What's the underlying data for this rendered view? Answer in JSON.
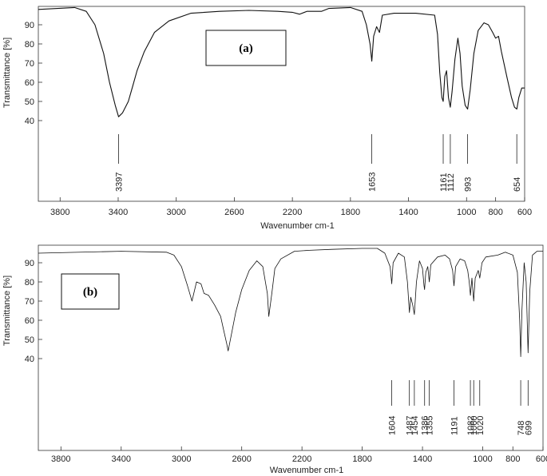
{
  "chart_data": [
    {
      "type": "line",
      "tag": "(a)",
      "xlabel": "Wavenumber cm-1",
      "ylabel": "Transmittance [%]",
      "xlim": [
        3950,
        600
      ],
      "ylim": [
        0,
        100
      ],
      "x_reversed": true,
      "x_ticks": [
        3800,
        3400,
        3000,
        2600,
        2200,
        1800,
        1400,
        1000,
        800,
        600
      ],
      "y_ticks": [
        40,
        50,
        60,
        70,
        80,
        90
      ],
      "grid": false,
      "peak_labels": [
        "3397",
        "1653",
        "1161",
        "1112",
        "993",
        "654"
      ],
      "peak_positions": [
        3397,
        1653,
        1161,
        1112,
        993,
        654
      ],
      "series": [
        {
          "values": [
            [
              3950,
              98
            ],
            [
              3700,
              99
            ],
            [
              3620,
              97
            ],
            [
              3560,
              90
            ],
            [
              3500,
              75
            ],
            [
              3460,
              60
            ],
            [
              3420,
              48
            ],
            [
              3397,
              42
            ],
            [
              3370,
              44
            ],
            [
              3330,
              50
            ],
            [
              3300,
              58
            ],
            [
              3270,
              66
            ],
            [
              3220,
              76
            ],
            [
              3150,
              86
            ],
            [
              3050,
              92
            ],
            [
              2900,
              96
            ],
            [
              2700,
              97
            ],
            [
              2500,
              97.5
            ],
            [
              2300,
              97
            ],
            [
              2200,
              96.5
            ],
            [
              2150,
              95.5
            ],
            [
              2100,
              97
            ],
            [
              2000,
              97
            ],
            [
              1950,
              98.5
            ],
            [
              1800,
              99
            ],
            [
              1720,
              97
            ],
            [
              1690,
              90
            ],
            [
              1665,
              80
            ],
            [
              1653,
              71
            ],
            [
              1640,
              84
            ],
            [
              1620,
              89
            ],
            [
              1600,
              86
            ],
            [
              1580,
              95
            ],
            [
              1500,
              96
            ],
            [
              1350,
              96
            ],
            [
              1220,
              95
            ],
            [
              1200,
              85
            ],
            [
              1185,
              65
            ],
            [
              1170,
              52
            ],
            [
              1161,
              50
            ],
            [
              1150,
              63
            ],
            [
              1138,
              66
            ],
            [
              1125,
              52
            ],
            [
              1112,
              47
            ],
            [
              1100,
              55
            ],
            [
              1080,
              72
            ],
            [
              1060,
              83
            ],
            [
              1045,
              75
            ],
            [
              1030,
              58
            ],
            [
              1010,
              48
            ],
            [
              993,
              46
            ],
            [
              975,
              56
            ],
            [
              950,
              75
            ],
            [
              920,
              87
            ],
            [
              880,
              91
            ],
            [
              850,
              90
            ],
            [
              820,
              86
            ],
            [
              800,
              83
            ],
            [
              780,
              84
            ],
            [
              760,
              76
            ],
            [
              720,
              62
            ],
            [
              690,
              52
            ],
            [
              670,
              47
            ],
            [
              654,
              46
            ],
            [
              640,
              52
            ],
            [
              620,
              57
            ],
            [
              600,
              57
            ]
          ]
        }
      ]
    },
    {
      "type": "line",
      "tag": "(b)",
      "xlabel": "Wavenumber cm-1",
      "ylabel": "Transmittance [%]",
      "xlim": [
        3950,
        600
      ],
      "ylim": [
        0,
        100
      ],
      "x_reversed": true,
      "x_ticks": [
        3800,
        3400,
        3000,
        2600,
        2200,
        1800,
        1400,
        1000,
        800,
        600
      ],
      "y_ticks": [
        40,
        50,
        60,
        70,
        80,
        90
      ],
      "grid": false,
      "peak_labels": [
        "1604",
        "1487",
        "1454",
        "1386",
        "1355",
        "1191",
        "1082",
        "1060",
        "1020",
        "748",
        "699"
      ],
      "peak_positions": [
        1604,
        1487,
        1454,
        1386,
        1355,
        1191,
        1082,
        1060,
        1020,
        748,
        699
      ],
      "series": [
        {
          "values": [
            [
              3950,
              95
            ],
            [
              3400,
              96
            ],
            [
              3100,
              95.5
            ],
            [
              3050,
              94
            ],
            [
              3000,
              88
            ],
            [
              2960,
              78
            ],
            [
              2930,
              70
            ],
            [
              2900,
              80
            ],
            [
              2870,
              79
            ],
            [
              2850,
              74
            ],
            [
              2820,
              73
            ],
            [
              2780,
              68
            ],
            [
              2740,
              62
            ],
            [
              2720,
              55
            ],
            [
              2700,
              48
            ],
            [
              2690,
              44
            ],
            [
              2670,
              52
            ],
            [
              2640,
              64
            ],
            [
              2600,
              76
            ],
            [
              2550,
              86
            ],
            [
              2500,
              91
            ],
            [
              2460,
              88
            ],
            [
              2430,
              74
            ],
            [
              2420,
              62
            ],
            [
              2400,
              74
            ],
            [
              2380,
              87
            ],
            [
              2340,
              92
            ],
            [
              2250,
              96
            ],
            [
              2150,
              96.5
            ],
            [
              2000,
              97
            ],
            [
              1800,
              97.5
            ],
            [
              1700,
              97.5
            ],
            [
              1650,
              95
            ],
            [
              1615,
              88
            ],
            [
              1604,
              79
            ],
            [
              1595,
              90
            ],
            [
              1560,
              95
            ],
            [
              1520,
              93
            ],
            [
              1500,
              80
            ],
            [
              1487,
              64
            ],
            [
              1478,
              72
            ],
            [
              1465,
              68
            ],
            [
              1454,
              63
            ],
            [
              1440,
              80
            ],
            [
              1420,
              91
            ],
            [
              1400,
              87
            ],
            [
              1390,
              78
            ],
            [
              1386,
              76
            ],
            [
              1378,
              85
            ],
            [
              1365,
              88
            ],
            [
              1355,
              80
            ],
            [
              1345,
              89
            ],
            [
              1300,
              93
            ],
            [
              1250,
              94
            ],
            [
              1220,
              92
            ],
            [
              1200,
              86
            ],
            [
              1191,
              78
            ],
            [
              1180,
              88
            ],
            [
              1150,
              92
            ],
            [
              1120,
              91
            ],
            [
              1100,
              86
            ],
            [
              1090,
              80
            ],
            [
              1082,
              73
            ],
            [
              1072,
              82
            ],
            [
              1060,
              70
            ],
            [
              1050,
              82
            ],
            [
              1030,
              86
            ],
            [
              1020,
              82
            ],
            [
              1005,
              90
            ],
            [
              980,
              93
            ],
            [
              900,
              94
            ],
            [
              850,
              95.5
            ],
            [
              800,
              94
            ],
            [
              770,
              85
            ],
            [
              755,
              60
            ],
            [
              748,
              41
            ],
            [
              740,
              65
            ],
            [
              725,
              90
            ],
            [
              712,
              80
            ],
            [
              699,
              43
            ],
            [
              688,
              75
            ],
            [
              670,
              94
            ],
            [
              640,
              96
            ],
            [
              600,
              96
            ]
          ]
        }
      ]
    }
  ]
}
